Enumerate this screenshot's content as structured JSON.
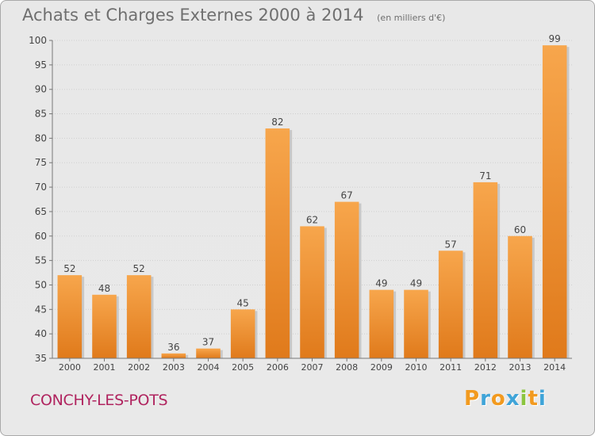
{
  "header": {
    "title": "Achats et Charges Externes 2000 à 2014",
    "unit": "(en milliers d'€)"
  },
  "chart_data": {
    "type": "bar",
    "title": "Achats et Charges Externes 2000 à 2014",
    "subtitle": "(en milliers d'€)",
    "xlabel": "",
    "ylabel": "",
    "categories": [
      "2000",
      "2001",
      "2002",
      "2003",
      "2004",
      "2005",
      "2006",
      "2007",
      "2008",
      "2009",
      "2010",
      "2011",
      "2012",
      "2013",
      "2014"
    ],
    "values": [
      52,
      48,
      52,
      36,
      37,
      45,
      82,
      62,
      67,
      49,
      49,
      57,
      71,
      60,
      99
    ],
    "ylim": [
      35,
      100
    ],
    "yticks": [
      35,
      40,
      45,
      50,
      55,
      60,
      65,
      70,
      75,
      80,
      85,
      90,
      95,
      100
    ],
    "grid": true,
    "bar_color": "#f29a3e"
  },
  "footer": {
    "city": "CONCHY-LES-POTS",
    "logo_letters": [
      "P",
      "r",
      "o",
      "x",
      "i",
      "t",
      "i"
    ],
    "logo_colors": [
      "#f29a1f",
      "#3fa4d8",
      "#f29a1f",
      "#3fa4d8",
      "#8bc53f",
      "#f29a1f",
      "#3fa4d8"
    ]
  }
}
